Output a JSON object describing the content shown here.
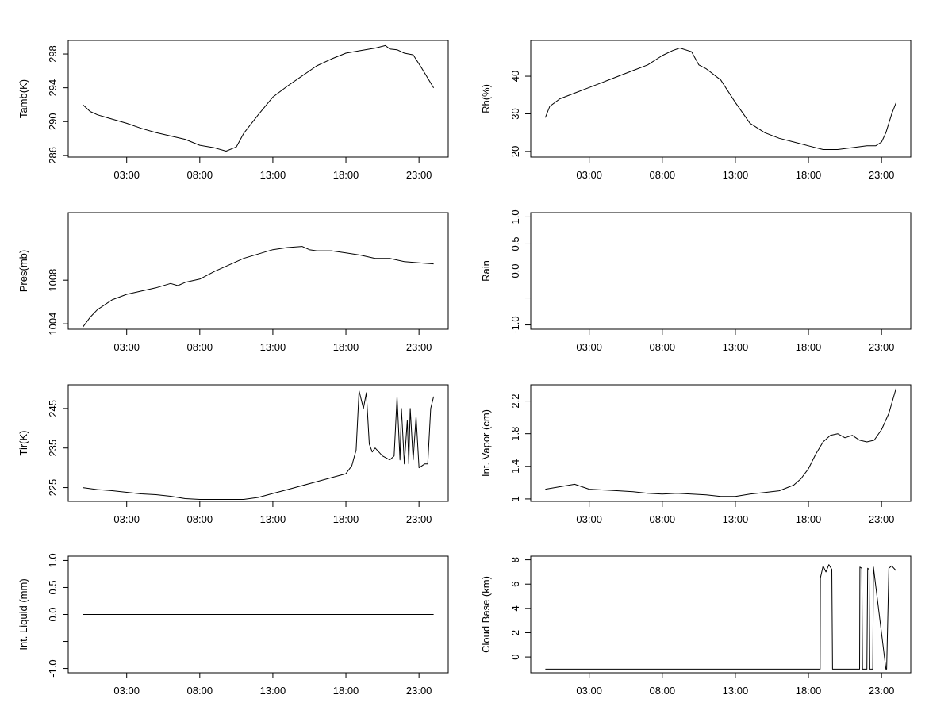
{
  "chart_data": [
    {
      "type": "line",
      "ylabel": "Tamb(K)",
      "xticks": [
        "03:00",
        "08:00",
        "13:00",
        "18:00",
        "23:00"
      ],
      "ylim": [
        285.8,
        299.6
      ],
      "yticks": [
        286,
        290,
        294,
        298
      ],
      "series": [
        {
          "x": [
            0,
            0.5,
            1,
            2,
            3,
            4,
            5,
            6,
            7,
            8,
            9,
            9.8,
            10.5,
            11,
            12,
            13,
            14,
            15,
            16,
            17,
            18,
            19,
            20,
            20.7,
            21,
            21.5,
            22,
            22.6,
            23.2,
            24
          ],
          "y": [
            292,
            291.2,
            290.8,
            290.3,
            289.8,
            289.2,
            288.7,
            288.3,
            287.9,
            287.2,
            286.9,
            286.5,
            287.0,
            288.6,
            290.8,
            292.9,
            294.2,
            295.4,
            296.6,
            297.4,
            298.1,
            298.4,
            298.7,
            299.0,
            298.6,
            298.5,
            298.1,
            297.9,
            296.3,
            294.0
          ]
        }
      ]
    },
    {
      "type": "line",
      "ylabel": "Rh(%)",
      "xticks": [
        "03:00",
        "08:00",
        "13:00",
        "18:00",
        "23:00"
      ],
      "ylim": [
        18.5,
        49.5
      ],
      "yticks": [
        20,
        30,
        40
      ],
      "series": [
        {
          "x": [
            0,
            0.3,
            1,
            2,
            3,
            4,
            5,
            6,
            7,
            8,
            8.7,
            9.2,
            10,
            10.5,
            11,
            12,
            13,
            14,
            15,
            16,
            17,
            18,
            19,
            20,
            21,
            22,
            22.6,
            23,
            23.3,
            23.7,
            24
          ],
          "y": [
            29,
            32,
            34,
            35.5,
            37,
            38.5,
            40,
            41.5,
            43,
            45.5,
            46.8,
            47.5,
            46.5,
            43,
            42,
            39,
            33,
            27.5,
            25,
            23.5,
            22.5,
            21.5,
            20.5,
            20.5,
            21,
            21.5,
            21.5,
            22.5,
            25,
            30,
            33
          ]
        }
      ]
    },
    {
      "type": "line",
      "ylabel": "Pres(mb)",
      "xticks": [
        "03:00",
        "08:00",
        "13:00",
        "18:00",
        "23:00"
      ],
      "ylim": [
        1003.5,
        1014.2
      ],
      "yticks": [
        1004,
        1008
      ],
      "series": [
        {
          "x": [
            0,
            0.5,
            1,
            2,
            3,
            4,
            5,
            6,
            6.5,
            7,
            8,
            9,
            10,
            11,
            12,
            13,
            14,
            15,
            15.5,
            16,
            17,
            18,
            19,
            20,
            21,
            22,
            23,
            24
          ],
          "y": [
            1003.7,
            1004.6,
            1005.3,
            1006.2,
            1006.7,
            1007.0,
            1007.3,
            1007.7,
            1007.5,
            1007.8,
            1008.1,
            1008.8,
            1009.4,
            1010.0,
            1010.4,
            1010.8,
            1011.0,
            1011.1,
            1010.8,
            1010.7,
            1010.7,
            1010.5,
            1010.3,
            1010.0,
            1010.0,
            1009.7,
            1009.6,
            1009.5
          ]
        }
      ]
    },
    {
      "type": "line",
      "ylabel": "Rain",
      "xticks": [
        "03:00",
        "08:00",
        "13:00",
        "18:00",
        "23:00"
      ],
      "ylim": [
        -1.08,
        1.08
      ],
      "yticks": [
        -1.0,
        -0.5,
        0.0,
        0.5,
        1.0
      ],
      "ytick_labels": [
        "-1.0",
        "",
        "0.0",
        "0.5",
        "1.0"
      ],
      "series": [
        {
          "x": [
            0,
            24
          ],
          "y": [
            0,
            0
          ]
        }
      ]
    },
    {
      "type": "line",
      "ylabel": "Tir(K)",
      "xticks": [
        "03:00",
        "08:00",
        "13:00",
        "18:00",
        "23:00"
      ],
      "ylim": [
        221.5,
        251.0
      ],
      "yticks": [
        225,
        235,
        245
      ],
      "series": [
        {
          "x": [
            0,
            1,
            2,
            3,
            4,
            5,
            6,
            7,
            8,
            9,
            10,
            11,
            12,
            13,
            14,
            15,
            16,
            17,
            18,
            18.4,
            18.7,
            18.9,
            19.2,
            19.4,
            19.6,
            19.8,
            20,
            20.5,
            21,
            21.3,
            21.5,
            21.7,
            21.8,
            22,
            22.2,
            22.3,
            22.4,
            22.6,
            22.8,
            23,
            23.4,
            23.6,
            23.8,
            24
          ],
          "y": [
            225,
            224.5,
            224.2,
            223.8,
            223.4,
            223.2,
            222.8,
            222.2,
            222.0,
            222.0,
            222.0,
            222.0,
            222.5,
            223.5,
            224.5,
            225.5,
            226.5,
            227.5,
            228.5,
            230.5,
            234.5,
            249.5,
            245,
            249,
            236,
            234,
            235,
            233,
            232,
            233,
            248,
            232,
            245,
            231,
            242,
            231,
            245,
            232,
            243,
            230,
            231,
            231,
            245,
            248
          ]
        }
      ]
    },
    {
      "type": "line",
      "ylabel": "Int. Vapor (cm)",
      "xticks": [
        "03:00",
        "08:00",
        "13:00",
        "18:00",
        "23:00"
      ],
      "ylim": [
        0.97,
        2.4
      ],
      "yticks": [
        1.0,
        1.4,
        1.8,
        2.2
      ],
      "series": [
        {
          "x": [
            0,
            1,
            2,
            3,
            4,
            5,
            6,
            7,
            8,
            9,
            10,
            11,
            12,
            13,
            14,
            15,
            16,
            17,
            17.5,
            18,
            18.5,
            19,
            19.5,
            20,
            20.5,
            21,
            21.5,
            22,
            22.5,
            23,
            23.5,
            24
          ],
          "y": [
            1.12,
            1.15,
            1.18,
            1.12,
            1.11,
            1.1,
            1.09,
            1.07,
            1.06,
            1.07,
            1.06,
            1.05,
            1.03,
            1.03,
            1.06,
            1.08,
            1.1,
            1.17,
            1.25,
            1.37,
            1.55,
            1.7,
            1.78,
            1.8,
            1.75,
            1.78,
            1.72,
            1.7,
            1.72,
            1.85,
            2.05,
            2.36
          ]
        }
      ]
    },
    {
      "type": "line",
      "ylabel": "Int. Liquid (mm)",
      "xticks": [
        "03:00",
        "08:00",
        "13:00",
        "18:00",
        "23:00"
      ],
      "ylim": [
        -1.08,
        1.08
      ],
      "yticks": [
        -1.0,
        -0.5,
        0.0,
        0.5,
        1.0
      ],
      "ytick_labels": [
        "-1.0",
        "",
        "0.0",
        "0.5",
        "1.0"
      ],
      "series": [
        {
          "x": [
            0,
            24
          ],
          "y": [
            0,
            0
          ]
        }
      ]
    },
    {
      "type": "line",
      "ylabel": "Cloud Base (km)",
      "xticks": [
        "03:00",
        "08:00",
        "13:00",
        "18:00",
        "23:00"
      ],
      "ylim": [
        -1.3,
        8.3
      ],
      "yticks": [
        0,
        2,
        4,
        6,
        8
      ],
      "series": [
        {
          "x": [
            0,
            18.8,
            18.82,
            19.0,
            19.2,
            19.4,
            19.6,
            19.65,
            21.5,
            21.52,
            21.65,
            21.7,
            22.0,
            22.05,
            22.15,
            22.2,
            22.4,
            22.45,
            23.3,
            23.35,
            23.5,
            23.7,
            24
          ],
          "y": [
            -1,
            -1,
            6.5,
            7.5,
            7.0,
            7.6,
            7.2,
            -1,
            -1,
            7.4,
            7.3,
            -1,
            -1,
            7.3,
            7.2,
            -1,
            -1,
            7.4,
            -1,
            -1,
            7.3,
            7.5,
            7.1
          ]
        }
      ]
    }
  ]
}
